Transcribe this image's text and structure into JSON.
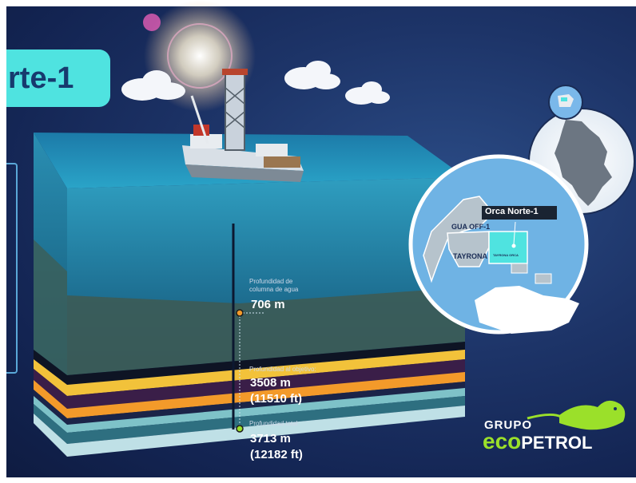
{
  "title": "rte-1",
  "water_column": {
    "label_line1": "Profundidad de",
    "label_line2": "columna de agua",
    "value": "706 m"
  },
  "target_depth": {
    "label": "Profundidad al objetivo:",
    "value_m": "3508 m",
    "value_ft": "(11510 ft)"
  },
  "total_depth": {
    "label": "Profundidad total",
    "value_m": "3713 m",
    "value_ft": "(12182 ft)"
  },
  "map": {
    "well_name": "Orca Norte-1",
    "block_1": "GUA OFF-1",
    "block_2": "TAYRONA",
    "block_small": "TAYRONA ORCA"
  },
  "logo": {
    "line1": "GRUPO",
    "line2_a": "eco",
    "line2_b": "PETROL"
  },
  "colors": {
    "accent": "#4fe3e0",
    "navy": "#173a6e",
    "logo_green": "#9be02a"
  }
}
